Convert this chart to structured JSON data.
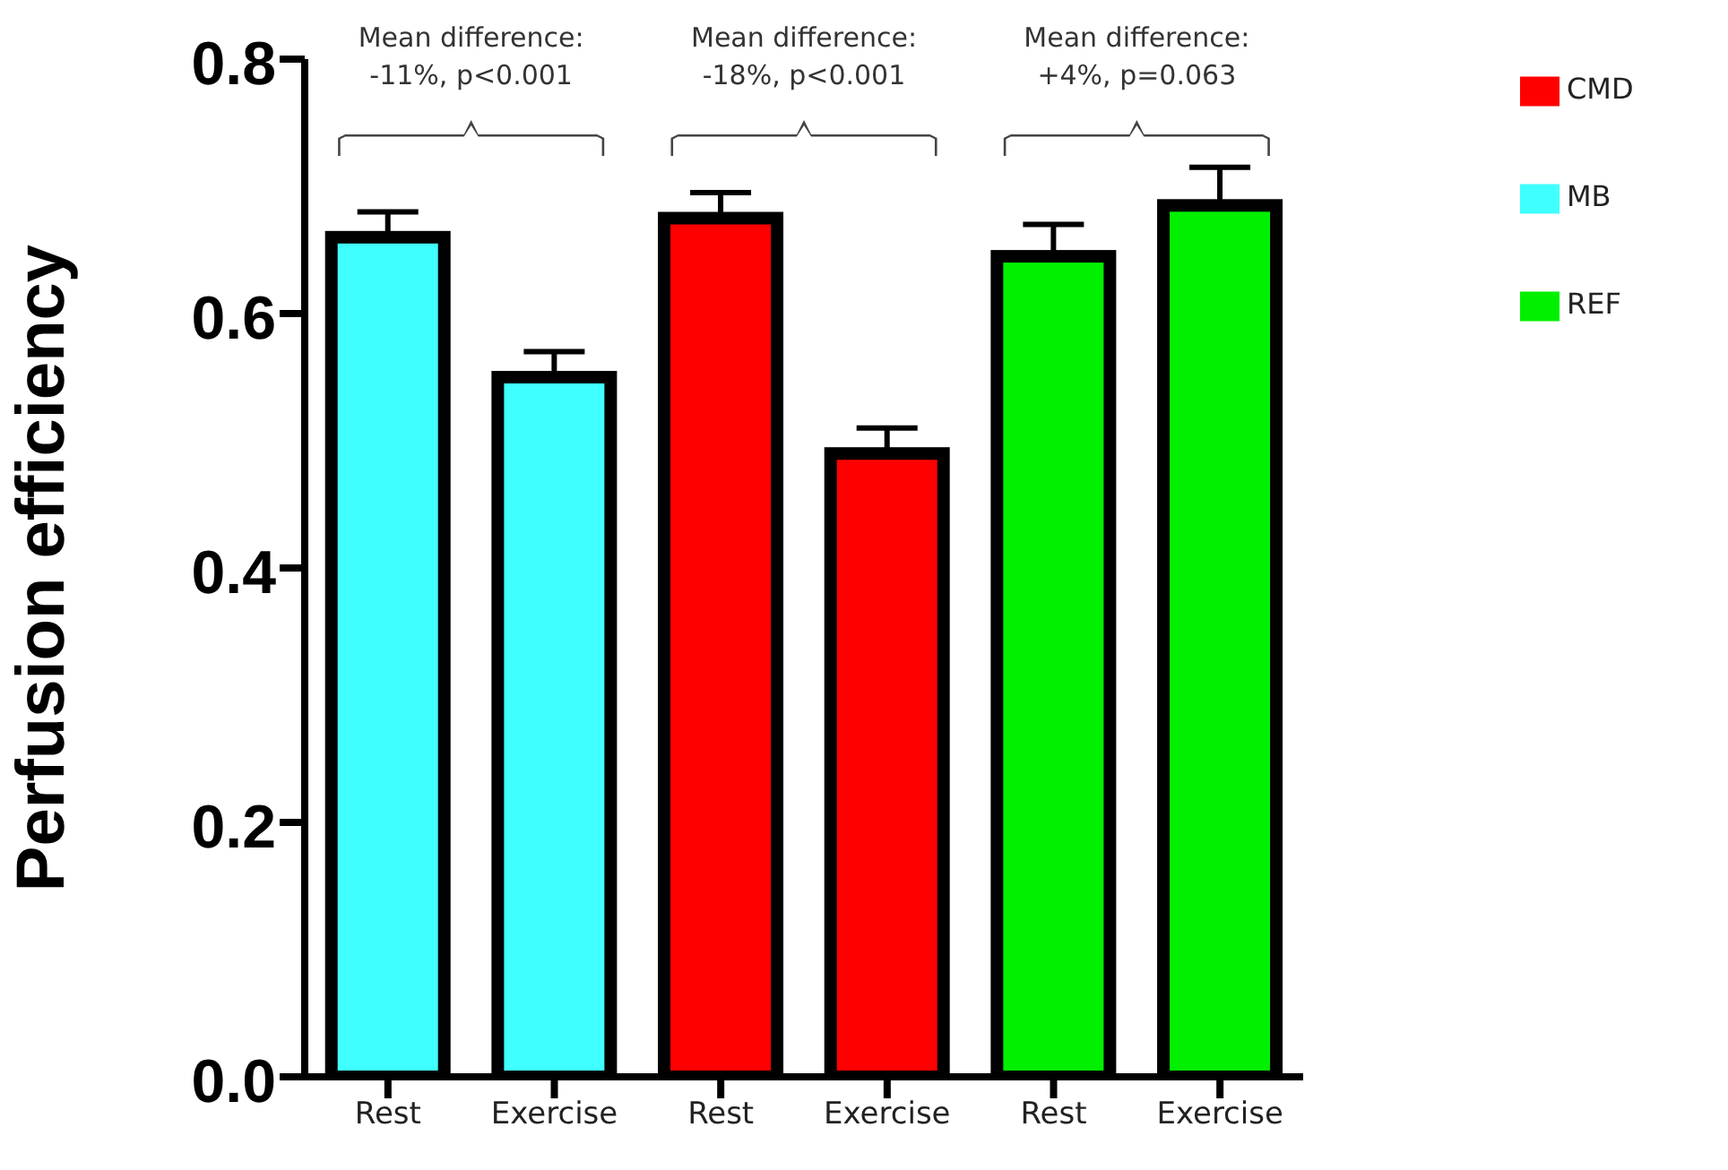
{
  "chart_data": {
    "type": "bar",
    "ylabel": "Perfusion efficiency",
    "categories": [
      "Rest",
      "Exercise",
      "Rest",
      "Exercise",
      "Rest",
      "Exercise"
    ],
    "stacked": true,
    "series": [
      {
        "name": "MB",
        "color": "#40ffff",
        "values": [
          0.66,
          0.55,
          null,
          null,
          null,
          null
        ],
        "errors": [
          0.02,
          0.02,
          null,
          null,
          null,
          null
        ]
      },
      {
        "name": "CMD",
        "color": "#ff0000",
        "values": [
          null,
          null,
          0.675,
          0.49,
          null,
          null
        ],
        "errors": [
          null,
          null,
          0.02,
          0.02,
          null,
          null
        ]
      },
      {
        "name": "REF",
        "color": "#00f000",
        "values": [
          null,
          null,
          null,
          null,
          0.645,
          0.685
        ],
        "errors": [
          null,
          null,
          null,
          null,
          0.025,
          0.03
        ]
      }
    ],
    "annotations": [
      "Mean difference:\n-11%, p<0.001",
      "Mean difference:\n-18%, p<0.001",
      "Mean difference:\n+4%, p=0.063"
    ],
    "ylim": [
      0,
      0.8
    ],
    "yticks": [
      {
        "value": 0,
        "label": "0.0"
      },
      {
        "value": 0.2,
        "label": "0.2"
      },
      {
        "value": 0.4,
        "label": "0.4"
      },
      {
        "value": 0.6,
        "label": "0.6"
      },
      {
        "value": 0.8,
        "label": "0.8"
      }
    ],
    "grid": false,
    "legend": "right"
  }
}
